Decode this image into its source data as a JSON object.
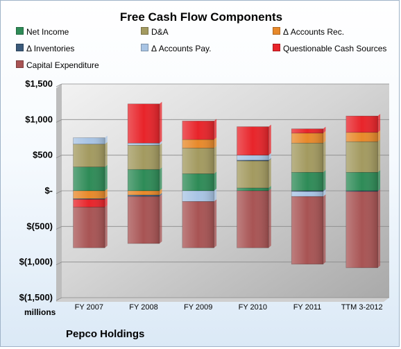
{
  "chart_data": {
    "type": "bar",
    "stacked": true,
    "title": "Free Cash Flow Components",
    "categories": [
      "FY 2007",
      "FY 2008",
      "FY 2009",
      "FY 2010",
      "FY 2011",
      "TTM 3-2012"
    ],
    "series": [
      {
        "name": "Net Income",
        "color": "#2e8b57",
        "values": [
          335,
          300,
          240,
          40,
          260,
          260
        ]
      },
      {
        "name": "D&A",
        "color": "#a39a60",
        "values": [
          320,
          340,
          360,
          380,
          410,
          430
        ]
      },
      {
        "name": "Δ Accounts Rec.",
        "color": "#e8892a",
        "values": [
          -110,
          -60,
          120,
          0,
          140,
          130
        ]
      },
      {
        "name": "Δ Inventories",
        "color": "#3a5a7a",
        "values": [
          -10,
          -20,
          0,
          10,
          -10,
          -10
        ]
      },
      {
        "name": "Δ Accounts Pay.",
        "color": "#a8c4e4",
        "values": [
          90,
          30,
          -150,
          70,
          -70,
          0
        ]
      },
      {
        "name": "Questionable Cash Sources",
        "color": "#e8242a",
        "values": [
          -110,
          550,
          260,
          400,
          60,
          230
        ]
      },
      {
        "name": "Capital Expenditure",
        "color": "#a85454",
        "values": [
          -570,
          -660,
          -650,
          -800,
          -950,
          -1070
        ]
      }
    ],
    "y_ticks": [
      1500,
      1000,
      500,
      0,
      -500,
      -1000,
      -1500
    ],
    "y_tick_labels": [
      "$1,500",
      "$1,000",
      "$500",
      "$-",
      "$(500)",
      "$(1,000)",
      "$(1,500)"
    ],
    "ylim": [
      -1500,
      1500
    ],
    "ylabel": "",
    "xlabel": "",
    "units_label": "millions",
    "grid": true,
    "legend_position": "top"
  },
  "company_label": "Pepco Holdings"
}
